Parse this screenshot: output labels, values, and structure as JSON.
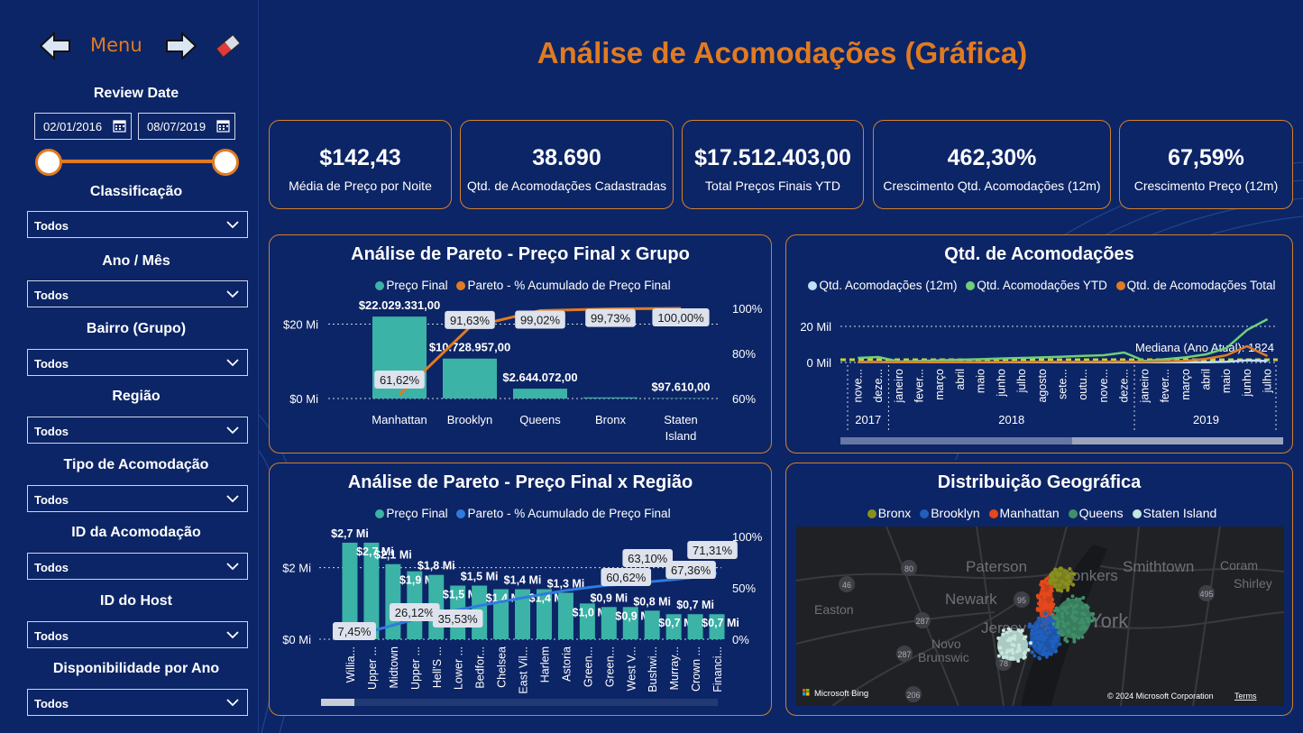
{
  "nav": {
    "menu_label": "Menu"
  },
  "filters": {
    "review_date": {
      "title": "Review Date",
      "start": "02/01/2016",
      "end": "08/07/2019"
    },
    "classificacao": {
      "title": "Classificação",
      "value": "Todos"
    },
    "ano_mes": {
      "title": "Ano / Mês",
      "value": "Todos"
    },
    "bairro": {
      "title": "Bairro (Grupo)",
      "value": "Todos"
    },
    "regiao": {
      "title": "Região",
      "value": "Todos"
    },
    "tipo": {
      "title": "Tipo de Acomodação",
      "value": "Todos"
    },
    "id_acomodacao": {
      "title": "ID da Acomodação",
      "value": "Todos"
    },
    "id_host": {
      "title": "ID do Host",
      "value": "Todos"
    },
    "disponibilidade": {
      "title": "Disponibilidade por Ano",
      "value": "Todos"
    }
  },
  "page_title": "Análise de Acomodações (Gráfica)",
  "kpis": [
    {
      "value": "$142,43",
      "label": "Média de Preço por Noite"
    },
    {
      "value": "38.690",
      "label": "Qtd. de Acomodações Cadastradas"
    },
    {
      "value": "$17.512.403,00",
      "label": "Total Preços Finais YTD"
    },
    {
      "value": "462,30%",
      "label": "Crescimento Qtd. Acomodações (12m)"
    },
    {
      "value": "67,59%",
      "label": "Crescimento Preço (12m)"
    }
  ],
  "colors": {
    "accent": "#e07b22",
    "bar": "#3bb3a6",
    "background": "#0c2566",
    "line_blue": "#2f7be0",
    "line_green": "#6fcf7a",
    "line_light": "#a7c8f5"
  },
  "chart_data": [
    {
      "type": "bar",
      "title": "Análise de Pareto - Preço Final x Grupo",
      "legend": [
        "Preço Final",
        "Pareto - % Acumulado de Preço Final"
      ],
      "categories": [
        "Manhattan",
        "Brooklyn",
        "Queens",
        "Bronx",
        "Staten Island"
      ],
      "series": [
        {
          "name": "Preço Final",
          "values": [
            22029331,
            10728957,
            2644072,
            300000,
            97610
          ],
          "labels": [
            "$22.029.331,00",
            "$10.728.957,00",
            "$2.644.072,00",
            "",
            "$97.610,00"
          ]
        },
        {
          "name": "Pareto - % Acumulado de Preço Final",
          "values": [
            61.62,
            91.63,
            99.02,
            99.73,
            100.0
          ],
          "labels": [
            "61,62%",
            "91,63%",
            "99,02%",
            "99,73%",
            "100,00%"
          ]
        }
      ],
      "y_ticks": [
        "$20 Mi",
        "$0 Mi"
      ],
      "y2_ticks": [
        "100%",
        "80%",
        "60%"
      ],
      "ylim": [
        0,
        24000000
      ],
      "y2lim": [
        60,
        100
      ]
    },
    {
      "type": "line",
      "title": "Qtd. de Acomodações",
      "legend": [
        "Qtd. Acomodações (12m)",
        "Qtd. Acomodações YTD",
        "Qtd. de Acomodações Total"
      ],
      "x": [
        "nove...",
        "deze...",
        "janeiro",
        "fever...",
        "março",
        "abril",
        "maio",
        "junho",
        "julho",
        "agosto",
        "sete...",
        "outu...",
        "nove...",
        "deze...",
        "janeiro",
        "fever...",
        "março",
        "abril",
        "maio",
        "junho",
        "julho"
      ],
      "years": [
        "2017",
        "2018",
        "2019"
      ],
      "series": [
        {
          "name": "Qtd. Acomodações (12m)",
          "values": [
            200,
            250,
            150,
            150,
            150,
            150,
            150,
            150,
            150,
            150,
            150,
            150,
            150,
            150,
            150,
            150,
            150,
            150,
            400,
            1200,
            800
          ]
        },
        {
          "name": "Qtd. Acomodações YTD",
          "values": [
            2500,
            3000,
            500,
            800,
            1200,
            1500,
            1800,
            2200,
            2500,
            2800,
            3200,
            3600,
            4000,
            5500,
            800,
            1800,
            2800,
            4500,
            8000,
            18000,
            24000
          ]
        },
        {
          "name": "Qtd. de Acomodações Total",
          "values": [
            300,
            350,
            200,
            200,
            200,
            200,
            250,
            250,
            300,
            300,
            350,
            400,
            450,
            500,
            400,
            600,
            900,
            2000,
            4000,
            9000,
            3500
          ]
        }
      ],
      "y_ticks": [
        "20 Mil",
        "0 Mil"
      ],
      "ylim": [
        0,
        25000
      ],
      "annotation": "Mediana (Ano Atual): 1824"
    },
    {
      "type": "bar",
      "title": "Análise de Pareto - Preço Final x Região",
      "legend": [
        "Preço Final",
        "Pareto - % Acumulado de Preço Final"
      ],
      "categories": [
        "Willia...",
        "Upper ...",
        "Midtown",
        "Upper ...",
        "Hell'S ...",
        "Lower ...",
        "Bedfor...",
        "Chelsea",
        "East Vil...",
        "Harlem",
        "Astoria",
        "Green...",
        "Green...",
        "West V...",
        "Bushwi...",
        "Murray...",
        "Crown ...",
        "Financi..."
      ],
      "series": [
        {
          "name": "Preço Final",
          "values": [
            2.7,
            2.7,
            2.1,
            1.9,
            1.8,
            1.5,
            1.5,
            1.4,
            1.4,
            1.4,
            1.3,
            1.0,
            0.9,
            0.9,
            0.8,
            0.7,
            0.7,
            0.7
          ],
          "labels": [
            "$2,7 Mi",
            "$2,7 Mi",
            "$2,1 Mi",
            "$1,9 Mi",
            "$1,8 Mi",
            "$1,5 Mi",
            "$1,5 Mi",
            "$1,4 Mi",
            "$1,4 Mi",
            "$1,4 Mi",
            "$1,3 Mi",
            "$1,0 Mi",
            "$0,9 Mi",
            "$0,9 Mi",
            "$0,8 Mi",
            "$0,7 Mi",
            "$0,7 Mi",
            "$0,7 Mi"
          ]
        },
        {
          "name": "Pareto - % Acumulado de Preço Final",
          "values": [
            7.45,
            14.9,
            20.7,
            26.12,
            31.0,
            35.53,
            39.6,
            43.5,
            47.3,
            51.0,
            54.5,
            57.2,
            59.7,
            60.62,
            63.1,
            65.0,
            67.36,
            71.31
          ],
          "labels": [
            "7,45%",
            "",
            "",
            "26,12%",
            "",
            "35,53%",
            "",
            "",
            "",
            "",
            "",
            "",
            "",
            "60,62%",
            "63,10%",
            "",
            "67,36%",
            "71,31%"
          ]
        }
      ],
      "y_ticks": [
        "$2 Mi",
        "$0 Mi"
      ],
      "y2_ticks": [
        "100%",
        "50%",
        "0%"
      ],
      "ylim": [
        0,
        3
      ],
      "y2lim": [
        0,
        100
      ]
    }
  ],
  "geo": {
    "title": "Distribuição Geográfica",
    "legend": [
      {
        "name": "Bronx",
        "color": "#8a8f1e"
      },
      {
        "name": "Brooklyn",
        "color": "#1f5fbf"
      },
      {
        "name": "Manhattan",
        "color": "#e5481b"
      },
      {
        "name": "Queens",
        "color": "#3e8f6a"
      },
      {
        "name": "Staten Island",
        "color": "#c6e7de"
      }
    ],
    "map_labels": [
      "Paterson",
      "Yonkers",
      "Smithtown",
      "Coram",
      "Shirley",
      "Newark",
      "York",
      "Easton",
      "Jersey",
      "Novo",
      "Brunswic"
    ],
    "road_numbers": [
      "80",
      "95",
      "495",
      "46",
      "287",
      "287",
      "78",
      "206"
    ],
    "bing_label": "Microsoft Bing",
    "copyright": "© 2024 Microsoft Corporation",
    "terms": "Terms"
  }
}
